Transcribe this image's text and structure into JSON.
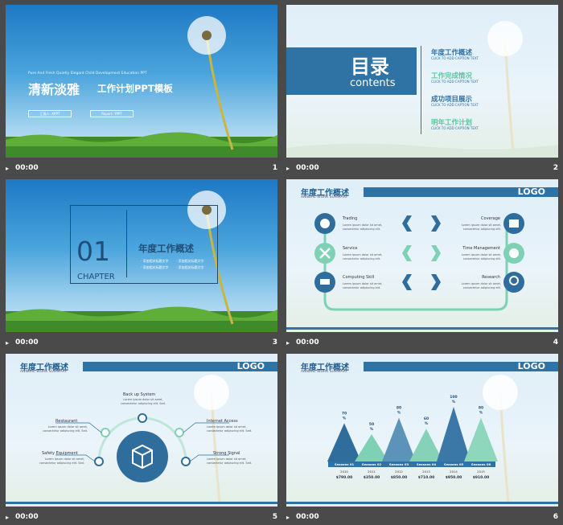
{
  "slides": [
    {
      "num": "1",
      "duration": "00:00",
      "en_line": "Pure And Fresh Quietly Elegant Child Development Education PPT",
      "title_cn": "清新淡雅",
      "subtitle_cn": "工作计划PPT模板",
      "btn_left": "汇报人: XPPT",
      "btn_right": "Report: YPPT"
    },
    {
      "num": "2",
      "duration": "00:00",
      "toc_cn": "目录",
      "toc_en": "contents",
      "items": [
        {
          "cn": "年度工作概述",
          "en": "CLICK TO ADD CAPTION TEXT"
        },
        {
          "cn": "工作完成情况",
          "en": "CLICK TO ADD CAPTION TEXT"
        },
        {
          "cn": "成功项目展示",
          "en": "CLICK TO ADD CAPTION TEXT"
        },
        {
          "cn": "明年工作计划",
          "en": "CLICK TO ADD CAPTION TEXT"
        }
      ]
    },
    {
      "num": "3",
      "duration": "00:00",
      "chapter_num": "01",
      "chapter_label": "CHAPTER",
      "title_cn": "年度工作概述",
      "bullets": [
        "· 添加相关标题文字",
        "· 添加相关标题文字",
        "· 添加相关标题文字",
        "· 添加相关标题文字"
      ]
    },
    {
      "num": "4",
      "duration": "00:00",
      "header": "年度工作概述",
      "header_en": "ANNUAL WORK SUMMARY",
      "logo": "LOGO",
      "left_items": [
        "Trading",
        "Service",
        "Computing Skill"
      ],
      "right_items": [
        "Coverage",
        "Time Management",
        "Research"
      ],
      "desc": "Lorem ipsum dolor sit amet, consectetur adipiscing elit."
    },
    {
      "num": "5",
      "duration": "00:00",
      "header": "年度工作概述",
      "header_en": "ANNUAL WORK SUMMARY",
      "logo": "LOGO",
      "top_label": "Back up System",
      "left_items": [
        "Restaurant",
        "Safety Equipment"
      ],
      "right_items": [
        "Internet Access",
        "Strong Signal"
      ],
      "desc": "Lorem ipsum dolor sit amet, consectetur adipiscing elit. Sed."
    },
    {
      "num": "6",
      "duration": "00:00",
      "header": "年度工作概述",
      "header_en": "ANNUAL WORK SUMMARY",
      "logo": "LOGO"
    }
  ],
  "chart_data": {
    "type": "bar",
    "categories": [
      "Seasons 01",
      "Seasons 02",
      "Seasons 03",
      "Seasons 04",
      "Seasons 05",
      "Seasons 06"
    ],
    "values": [
      70,
      50,
      80,
      60,
      100,
      80
    ],
    "value_labels": [
      "70\n%",
      "50\n%",
      "80\n%",
      "60\n%",
      "100\n%",
      "80\n%"
    ],
    "years": [
      "2010",
      "2011",
      "2012",
      "2013",
      "2014",
      "2015"
    ],
    "amounts": [
      "$790.00",
      "$350.00",
      "$850.00",
      "$710.00",
      "$950.00",
      "$910.00"
    ],
    "colors": [
      "#2f6d9c",
      "#7fd1b5",
      "#5c93b8",
      "#85d2b8",
      "#3b78a8",
      "#8ed7bd"
    ]
  }
}
